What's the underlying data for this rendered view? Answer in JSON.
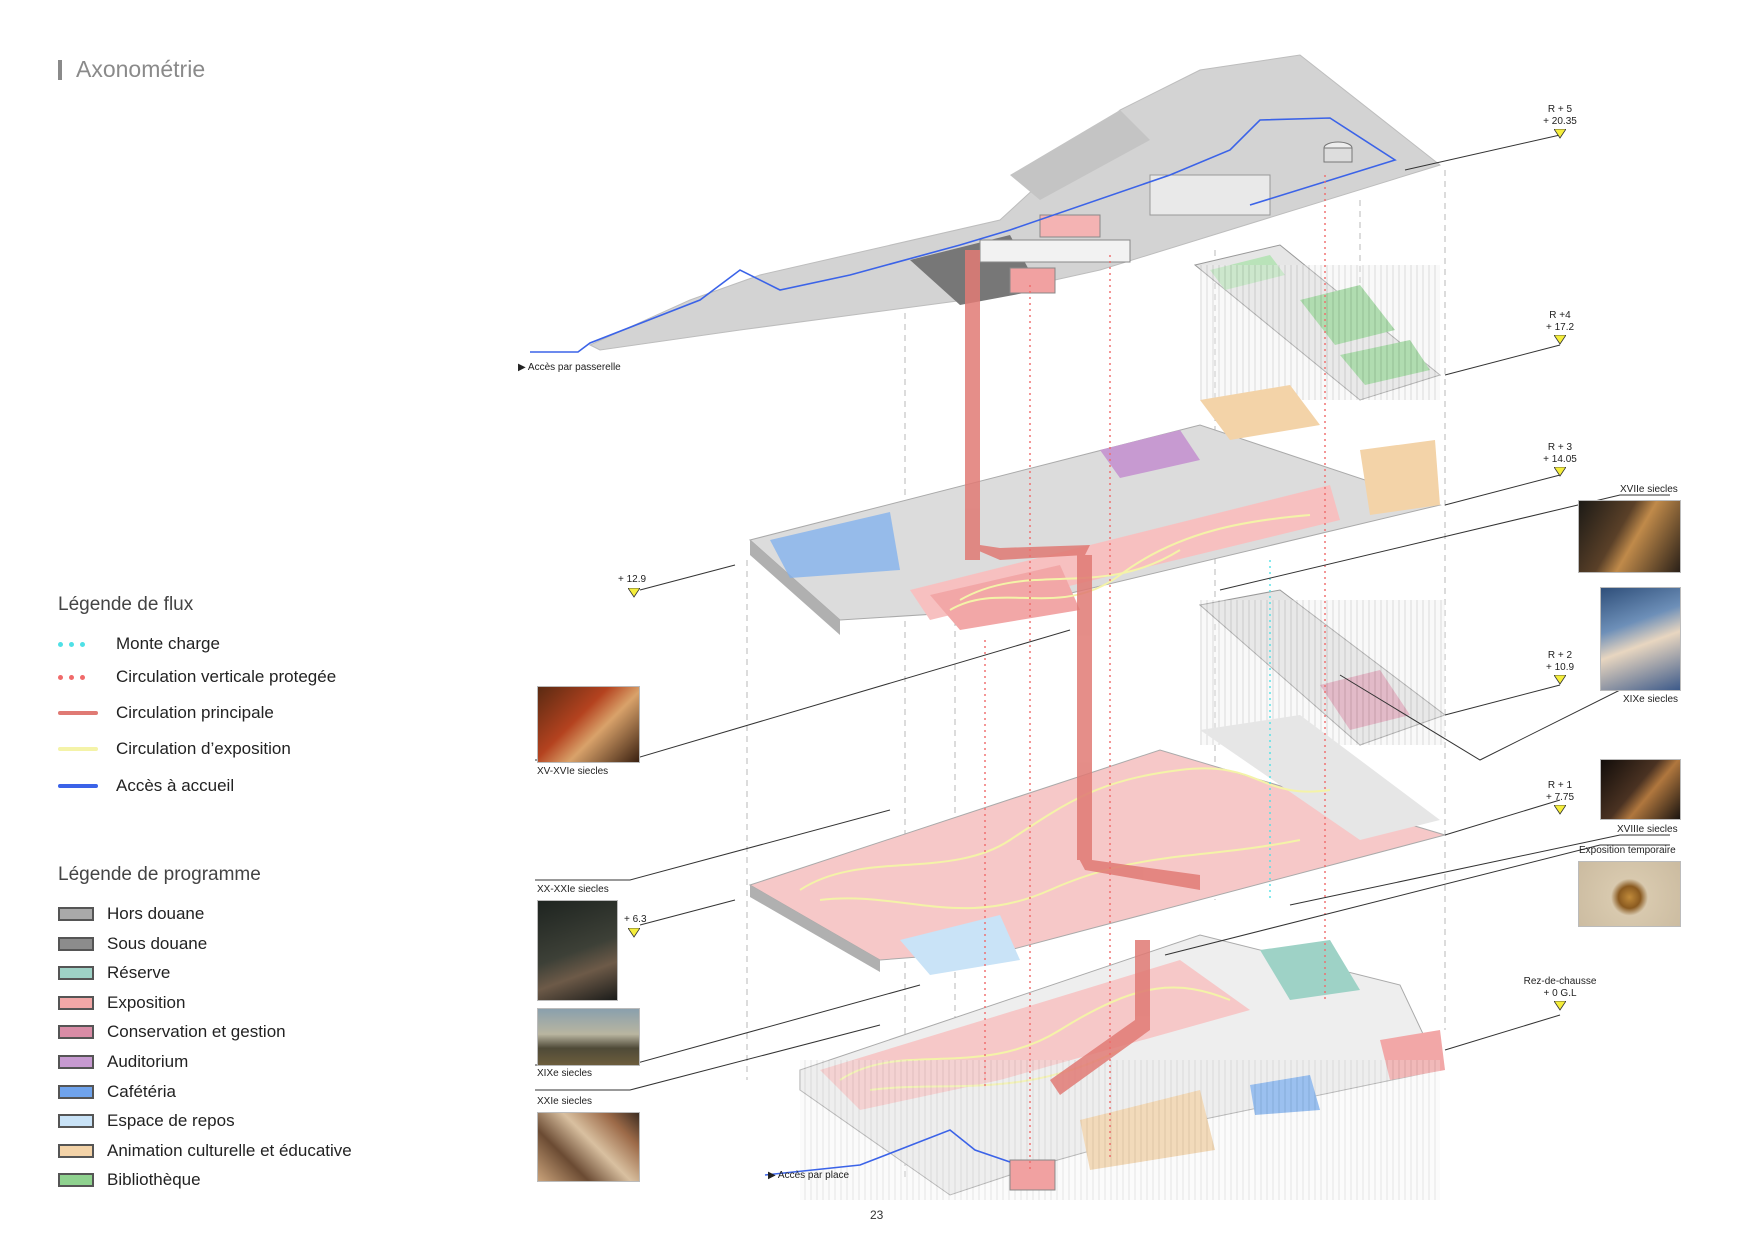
{
  "title": "Axonométrie",
  "page_number": "23",
  "flux_legend": {
    "heading": "Légende de flux",
    "items": [
      {
        "label": "Monte charge",
        "style": "dots",
        "color": "#4fe0e6"
      },
      {
        "label": "Circulation verticale protegée",
        "style": "dots",
        "color": "#f06a6a"
      },
      {
        "label": "Circulation principale",
        "style": "line",
        "color": "#e07a74"
      },
      {
        "label": "Circulation d’exposition",
        "style": "line",
        "color": "#f4f3a8"
      },
      {
        "label": "Accès à accueil",
        "style": "line",
        "color": "#3b63e8"
      }
    ]
  },
  "program_legend": {
    "heading": "Légende de programme",
    "items": [
      {
        "label": "Hors douane",
        "color": "#a9a9a9"
      },
      {
        "label": "Sous douane",
        "color": "#8c8c8c"
      },
      {
        "label": "Réserve",
        "color": "#9ed2c6"
      },
      {
        "label": "Exposition",
        "color": "#f2a7a7"
      },
      {
        "label": "Conservation et gestion",
        "color": "#d98ca6"
      },
      {
        "label": "Auditorium",
        "color": "#c79ad1"
      },
      {
        "label": "Cafétéria",
        "color": "#6fa3ec"
      },
      {
        "label": "Espace de repos",
        "color": "#c9e3f7"
      },
      {
        "label": "Animation culturelle et éducative",
        "color": "#f3d3a8"
      },
      {
        "label": "Bibliothèque",
        "color": "#8fd28f"
      }
    ]
  },
  "levels": [
    {
      "name": "R + 5",
      "elev": "+ 20.35"
    },
    {
      "name": "R +4",
      "elev": "+ 17.2"
    },
    {
      "name": "R + 3",
      "elev": "+ 14.05"
    },
    {
      "name": "R + 2",
      "elev": "+ 10.9"
    },
    {
      "name": "R + 1",
      "elev": "+ 7.75"
    },
    {
      "name": "Rez-de-chausse",
      "elev": "+ 0 G.L"
    }
  ],
  "intermediate_levels": [
    "+ 12.9",
    "+ 6.3"
  ],
  "access": {
    "passerelle": "Accès par passerelle",
    "place": "Accès par place"
  },
  "galleries": {
    "xv_xvi": "XV-XVIe siecles",
    "xvii": "XVIIe siecles",
    "xix_right": "XIXe siecles",
    "xviii": "XVIIIe siecles",
    "expo_temp": "Exposition temporaire",
    "xx_xxi": "XX-XXIe siecles",
    "xix_left": "XIXe siecles",
    "xxi": "XXIe siecles"
  }
}
